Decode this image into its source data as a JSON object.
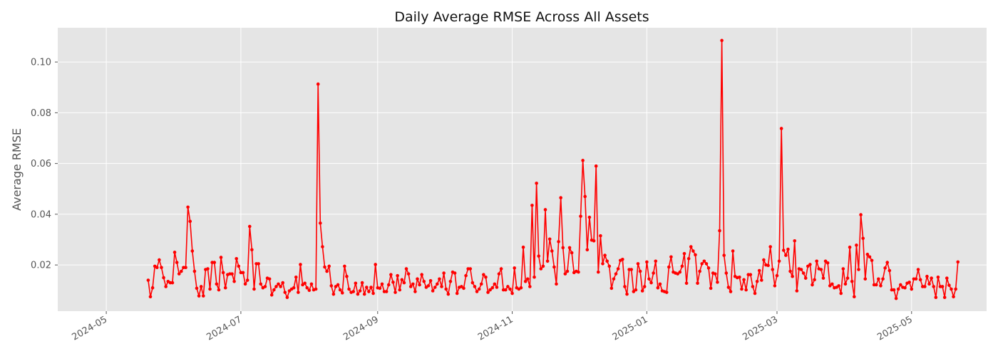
{
  "chart_data": {
    "type": "line",
    "title": "Daily Average RMSE Across All Assets",
    "xlabel": "",
    "ylabel": "Average RMSE",
    "x_axis_type": "date",
    "xlim": [
      "2024-04-09",
      "2025-06-04"
    ],
    "ylim": [
      0.0018,
      0.1135
    ],
    "x_ticks": [
      "2024-05-01",
      "2024-07-01",
      "2024-09-01",
      "2024-11-01",
      "2025-01-01",
      "2025-03-01",
      "2025-05-01"
    ],
    "x_tick_labels": [
      "2024-05",
      "2024-07",
      "2024-09",
      "2024-11",
      "2025-01",
      "2025-03",
      "2025-05"
    ],
    "y_ticks": [
      0.02,
      0.04,
      0.06,
      0.08,
      0.1
    ],
    "y_tick_labels": [
      "0.02",
      "0.04",
      "0.06",
      "0.08",
      "0.10"
    ],
    "grid": true,
    "background_color": "#e5e5e5",
    "series_color": "#ff0000",
    "series": [
      {
        "start_date": "2024-05-20",
        "frequency": "daily",
        "values": [
          0.014,
          0.0075,
          0.011,
          0.0195,
          0.019,
          0.022,
          0.019,
          0.015,
          0.0115,
          0.0135,
          0.013,
          0.013,
          0.025,
          0.021,
          0.0165,
          0.0175,
          0.019,
          0.019,
          0.0428,
          0.0372,
          0.0255,
          0.0175,
          0.0108,
          0.0078,
          0.0115,
          0.0078,
          0.0182,
          0.0185,
          0.0105,
          0.021,
          0.021,
          0.0125,
          0.0102,
          0.023,
          0.017,
          0.011,
          0.0162,
          0.0165,
          0.0165,
          0.0135,
          0.0225,
          0.0195,
          0.017,
          0.017,
          0.0125,
          0.014,
          0.0352,
          0.026,
          0.0105,
          0.0205,
          0.0205,
          0.0125,
          0.011,
          0.0115,
          0.0148,
          0.0145,
          0.0082,
          0.0102,
          0.0115,
          0.0125,
          0.0115,
          0.013,
          0.0092,
          0.0072,
          0.0098,
          0.0105,
          0.011,
          0.0152,
          0.0092,
          0.0202,
          0.0122,
          0.0128,
          0.011,
          0.01,
          0.0125,
          0.0102,
          0.0105,
          0.0913,
          0.0365,
          0.0272,
          0.0192,
          0.0175,
          0.0195,
          0.0118,
          0.0085,
          0.0115,
          0.0122,
          0.0102,
          0.009,
          0.0195,
          0.0155,
          0.0105,
          0.0092,
          0.0095,
          0.0128,
          0.0085,
          0.0098,
          0.013,
          0.0085,
          0.0112,
          0.0095,
          0.0112,
          0.0088,
          0.0202,
          0.011,
          0.0108,
          0.0125,
          0.0095,
          0.0095,
          0.0122,
          0.0162,
          0.0132,
          0.0092,
          0.0158,
          0.0102,
          0.0142,
          0.013,
          0.0185,
          0.0165,
          0.0115,
          0.0125,
          0.0095,
          0.0145,
          0.0122,
          0.0162,
          0.0135,
          0.0112,
          0.0118,
          0.0138,
          0.0098,
          0.0112,
          0.0125,
          0.0145,
          0.0115,
          0.0168,
          0.0105,
          0.0085,
          0.0135,
          0.0172,
          0.0168,
          0.0088,
          0.0112,
          0.0115,
          0.0108,
          0.0158,
          0.0185,
          0.0185,
          0.013,
          0.0115,
          0.0095,
          0.0105,
          0.0125,
          0.0162,
          0.0152,
          0.0092,
          0.0102,
          0.011,
          0.0125,
          0.0112,
          0.0165,
          0.0185,
          0.0102,
          0.0102,
          0.0115,
          0.0105,
          0.0088,
          0.0188,
          0.011,
          0.0105,
          0.011,
          0.027,
          0.0135,
          0.0145,
          0.0115,
          0.0435,
          0.0152,
          0.0522,
          0.0235,
          0.0185,
          0.0195,
          0.0418,
          0.0215,
          0.0302,
          0.0255,
          0.0192,
          0.0125,
          0.0292,
          0.0465,
          0.0268,
          0.0165,
          0.0175,
          0.0268,
          0.0248,
          0.017,
          0.0175,
          0.0172,
          0.0392,
          0.0612,
          0.047,
          0.026,
          0.0388,
          0.0298,
          0.0295,
          0.059,
          0.0172,
          0.0315,
          0.0205,
          0.0238,
          0.0215,
          0.0195,
          0.0108,
          0.0145,
          0.0165,
          0.0185,
          0.0218,
          0.0222,
          0.0115,
          0.0085,
          0.0182,
          0.0182,
          0.0095,
          0.0102,
          0.0205,
          0.0175,
          0.0098,
          0.0115,
          0.0212,
          0.0145,
          0.013,
          0.0168,
          0.0215,
          0.011,
          0.0125,
          0.0098,
          0.0095,
          0.0092,
          0.0192,
          0.0232,
          0.0172,
          0.0168,
          0.0165,
          0.0172,
          0.0195,
          0.0245,
          0.0128,
          0.0225,
          0.0272,
          0.0255,
          0.024,
          0.0128,
          0.0175,
          0.0205,
          0.0215,
          0.0205,
          0.0188,
          0.0108,
          0.0168,
          0.0165,
          0.0132,
          0.0335,
          0.1085,
          0.0238,
          0.0168,
          0.0112,
          0.0095,
          0.0255,
          0.0155,
          0.015,
          0.0152,
          0.0105,
          0.0142,
          0.0102,
          0.0162,
          0.0162,
          0.0115,
          0.0088,
          0.0135,
          0.0178,
          0.014,
          0.022,
          0.02,
          0.0198,
          0.0272,
          0.0182,
          0.0118,
          0.0158,
          0.0215,
          0.0738,
          0.0258,
          0.0238,
          0.0262,
          0.0175,
          0.0155,
          0.0295,
          0.0098,
          0.0185,
          0.0182,
          0.0168,
          0.0148,
          0.0195,
          0.0202,
          0.0122,
          0.0142,
          0.0215,
          0.0185,
          0.0182,
          0.0148,
          0.0215,
          0.0208,
          0.0118,
          0.0125,
          0.011,
          0.0112,
          0.0118,
          0.0088,
          0.0185,
          0.0125,
          0.0148,
          0.027,
          0.0135,
          0.0075,
          0.0278,
          0.0182,
          0.0398,
          0.0305,
          0.0145,
          0.0242,
          0.0232,
          0.0218,
          0.0122,
          0.0122,
          0.0145,
          0.0118,
          0.0145,
          0.0188,
          0.021,
          0.0178,
          0.0102,
          0.0102,
          0.0068,
          0.0105,
          0.0122,
          0.0112,
          0.011,
          0.0128,
          0.0132,
          0.0105,
          0.0145,
          0.0145,
          0.0182,
          0.0142,
          0.0115,
          0.0115,
          0.0155,
          0.0125,
          0.0148,
          0.0115,
          0.0072,
          0.0152,
          0.0115,
          0.0115,
          0.0072,
          0.0148,
          0.012,
          0.0105,
          0.0075,
          0.0105,
          0.0212
        ]
      }
    ]
  }
}
